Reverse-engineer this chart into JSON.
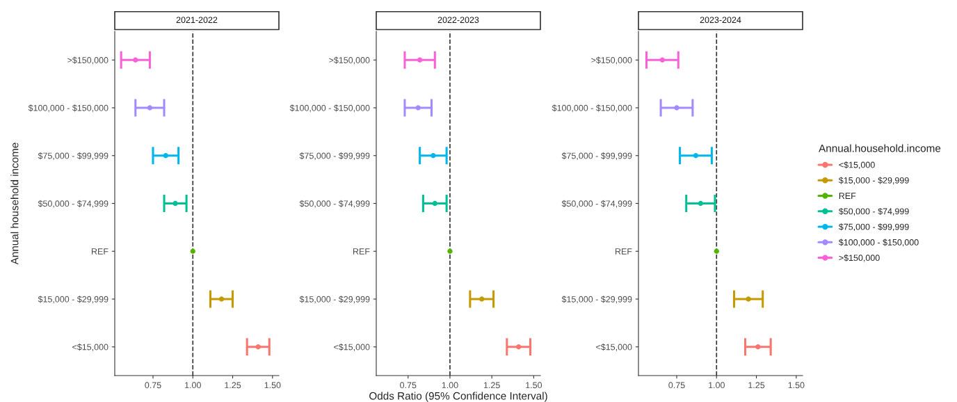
{
  "chart_data": [
    {
      "type": "scatter",
      "orientation": "horizontal",
      "title": "2021-2022",
      "ylabel": "Annual household income",
      "categories": [
        ">$150,000",
        "$100,000 - $150,000",
        "$75,000 - $99,999",
        "$50,000 - $74,999",
        "REF",
        "$15,000 - $29,999",
        "<$15,000"
      ],
      "xlim": [
        0.51,
        1.54
      ],
      "xticks": [
        {
          "value": 0.75,
          "label": "0.75"
        },
        {
          "value": 1.0,
          "label": "1.00"
        },
        {
          "value": 1.25,
          "label": "1.25"
        },
        {
          "value": 1.5,
          "label": "1.50"
        }
      ],
      "grid": false,
      "marker": "circle",
      "ref_lines": [
        {
          "axis": "x",
          "value": 1.0,
          "line_style": "dashed",
          "color": "#333333"
        }
      ],
      "series": [
        {
          "color": "#f8766d",
          "values": [
            null,
            null,
            null,
            null,
            null,
            null,
            1.41
          ],
          "errors": [
            null,
            null,
            null,
            null,
            null,
            null,
            [
              1.34,
              1.48
            ]
          ]
        },
        {
          "color": "#c49a00",
          "values": [
            null,
            null,
            null,
            null,
            null,
            1.18,
            null
          ],
          "errors": [
            null,
            null,
            null,
            null,
            null,
            [
              1.11,
              1.25
            ],
            null
          ]
        },
        {
          "color": "#53b400",
          "values": [
            null,
            null,
            null,
            null,
            1.0,
            null,
            null
          ]
        },
        {
          "color": "#00c094",
          "values": [
            null,
            null,
            null,
            0.89,
            null,
            null,
            null
          ],
          "errors": [
            null,
            null,
            null,
            [
              0.82,
              0.96
            ],
            null,
            null,
            null
          ]
        },
        {
          "color": "#00b6eb",
          "values": [
            null,
            null,
            0.83,
            null,
            null,
            null,
            null
          ],
          "errors": [
            null,
            null,
            [
              0.75,
              0.91
            ],
            null,
            null,
            null,
            null
          ]
        },
        {
          "color": "#a58aff",
          "values": [
            null,
            0.73,
            null,
            null,
            null,
            null,
            null
          ],
          "errors": [
            null,
            [
              0.64,
              0.82
            ],
            null,
            null,
            null,
            null,
            null
          ]
        },
        {
          "color": "#fb61d7",
          "values": [
            0.64,
            null,
            null,
            null,
            null,
            null,
            null
          ],
          "errors": [
            [
              0.55,
              0.73
            ],
            null,
            null,
            null,
            null,
            null,
            null
          ]
        }
      ]
    },
    {
      "type": "scatter",
      "orientation": "horizontal",
      "title": "2022-2023",
      "xlabel": "Odds Ratio (95% Confidence Interval)",
      "categories": [
        ">$150,000",
        "$100,000 - $150,000",
        "$75,000 - $99,999",
        "$50,000 - $74,999",
        "REF",
        "$15,000 - $29,999",
        "<$15,000"
      ],
      "xlim": [
        0.56,
        1.54
      ],
      "xticks": [
        {
          "value": 0.75,
          "label": "0.75"
        },
        {
          "value": 1.0,
          "label": "1.00"
        },
        {
          "value": 1.25,
          "label": "1.25"
        },
        {
          "value": 1.5,
          "label": "1.50"
        }
      ],
      "grid": false,
      "marker": "circle",
      "ref_lines": [
        {
          "axis": "x",
          "value": 1.0,
          "line_style": "dashed",
          "color": "#333333"
        }
      ],
      "series": [
        {
          "color": "#f8766d",
          "values": [
            null,
            null,
            null,
            null,
            null,
            null,
            1.41
          ],
          "errors": [
            null,
            null,
            null,
            null,
            null,
            null,
            [
              1.34,
              1.48
            ]
          ]
        },
        {
          "color": "#c49a00",
          "values": [
            null,
            null,
            null,
            null,
            null,
            1.19,
            null
          ],
          "errors": [
            null,
            null,
            null,
            null,
            null,
            [
              1.12,
              1.26
            ],
            null
          ]
        },
        {
          "color": "#53b400",
          "values": [
            null,
            null,
            null,
            null,
            1.0,
            null,
            null
          ]
        },
        {
          "color": "#00c094",
          "values": [
            null,
            null,
            null,
            0.91,
            null,
            null,
            null
          ],
          "errors": [
            null,
            null,
            null,
            [
              0.84,
              0.98
            ],
            null,
            null,
            null
          ]
        },
        {
          "color": "#00b6eb",
          "values": [
            null,
            null,
            0.9,
            null,
            null,
            null,
            null
          ],
          "errors": [
            null,
            null,
            [
              0.82,
              0.98
            ],
            null,
            null,
            null,
            null
          ]
        },
        {
          "color": "#a58aff",
          "values": [
            null,
            0.81,
            null,
            null,
            null,
            null,
            null
          ],
          "errors": [
            null,
            [
              0.73,
              0.89
            ],
            null,
            null,
            null,
            null,
            null
          ]
        },
        {
          "color": "#fb61d7",
          "values": [
            0.82,
            null,
            null,
            null,
            null,
            null,
            null
          ],
          "errors": [
            [
              0.73,
              0.91
            ],
            null,
            null,
            null,
            null,
            null,
            null
          ]
        }
      ]
    },
    {
      "type": "scatter",
      "orientation": "horizontal",
      "title": "2023-2024",
      "legend_title": "Annual.household.income",
      "legend": "right",
      "categories": [
        ">$150,000",
        "$100,000 - $150,000",
        "$75,000 - $99,999",
        "$50,000 - $74,999",
        "REF",
        "$15,000 - $29,999",
        "<$15,000"
      ],
      "xlim": [
        0.51,
        1.54
      ],
      "xticks": [
        {
          "value": 0.75,
          "label": "0.75"
        },
        {
          "value": 1.0,
          "label": "1.00"
        },
        {
          "value": 1.25,
          "label": "1.25"
        },
        {
          "value": 1.5,
          "label": "1.50"
        }
      ],
      "grid": false,
      "marker": "circle",
      "ref_lines": [
        {
          "axis": "x",
          "value": 1.0,
          "line_style": "dashed",
          "color": "#333333"
        }
      ],
      "series": [
        {
          "name": "<$15,000",
          "color": "#f8766d",
          "values": [
            null,
            null,
            null,
            null,
            null,
            null,
            1.26
          ],
          "errors": [
            null,
            null,
            null,
            null,
            null,
            null,
            [
              1.18,
              1.34
            ]
          ]
        },
        {
          "name": "$15,000 - $29,999",
          "color": "#c49a00",
          "values": [
            null,
            null,
            null,
            null,
            null,
            1.2,
            null
          ],
          "errors": [
            null,
            null,
            null,
            null,
            null,
            [
              1.11,
              1.29
            ],
            null
          ]
        },
        {
          "name": "REF",
          "color": "#53b400",
          "values": [
            null,
            null,
            null,
            null,
            1.0,
            null,
            null
          ]
        },
        {
          "name": "$50,000 - $74,999",
          "color": "#00c094",
          "values": [
            null,
            null,
            null,
            0.9,
            null,
            null,
            null
          ],
          "errors": [
            null,
            null,
            null,
            [
              0.81,
              0.99
            ],
            null,
            null,
            null
          ]
        },
        {
          "name": "$75,000 - $99,999",
          "color": "#00b6eb",
          "values": [
            null,
            null,
            0.87,
            null,
            null,
            null,
            null
          ],
          "errors": [
            null,
            null,
            [
              0.77,
              0.97
            ],
            null,
            null,
            null,
            null
          ]
        },
        {
          "name": "$100,000 - $150,000",
          "color": "#a58aff",
          "values": [
            null,
            0.75,
            null,
            null,
            null,
            null,
            null
          ],
          "errors": [
            null,
            [
              0.65,
              0.85
            ],
            null,
            null,
            null,
            null,
            null
          ]
        },
        {
          "name": ">$150,000",
          "color": "#fb61d7",
          "values": [
            0.66,
            null,
            null,
            null,
            null,
            null,
            null
          ],
          "errors": [
            [
              0.56,
              0.76
            ],
            null,
            null,
            null,
            null,
            null,
            null
          ]
        }
      ]
    }
  ]
}
